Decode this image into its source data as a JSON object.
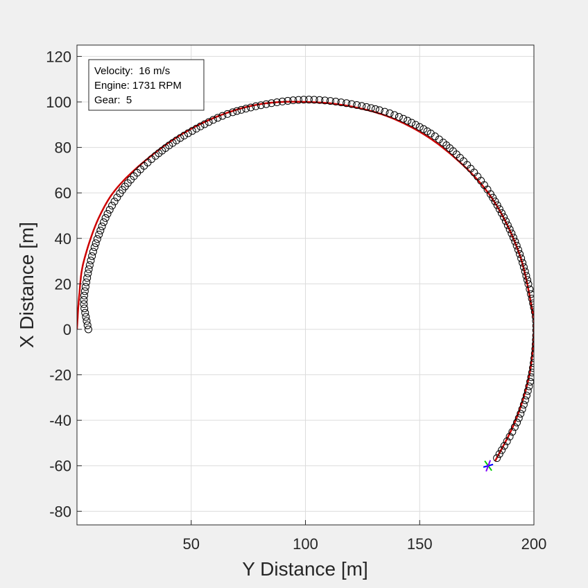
{
  "chart_data": {
    "type": "scatter",
    "xlabel": "Y Distance [m]",
    "ylabel": "X Distance [m]",
    "xlim": [
      0,
      200
    ],
    "ylim": [
      -86,
      125
    ],
    "xticks": [
      50,
      100,
      150,
      200
    ],
    "yticks": [
      -80,
      -60,
      -40,
      -20,
      0,
      20,
      40,
      60,
      80,
      100,
      120
    ],
    "grid": true,
    "legend_box": {
      "placement": "top-left",
      "lines": [
        "Velocity:  16 m/s",
        "Engine: 1731 RPM",
        "Gear:  5"
      ]
    },
    "series": [
      {
        "kind": "reference-path",
        "color": "#cc0000",
        "points": [
          [
            0,
            0
          ],
          [
            1,
            15
          ],
          [
            3,
            30
          ],
          [
            10,
            50
          ],
          [
            20,
            65
          ],
          [
            40,
            82
          ],
          [
            60,
            93
          ],
          [
            80,
            99
          ],
          [
            100,
            100
          ],
          [
            120,
            98
          ],
          [
            140,
            92
          ],
          [
            160,
            80
          ],
          [
            180,
            60
          ],
          [
            193,
            35
          ],
          [
            199,
            10
          ],
          [
            200,
            0
          ],
          [
            198,
            -20
          ],
          [
            192,
            -40
          ],
          [
            183,
            -58
          ]
        ]
      },
      {
        "kind": "vehicle-track",
        "marker": "circle",
        "color": "#000000",
        "points": [
          [
            5,
            0
          ],
          [
            4,
            5
          ],
          [
            3,
            12
          ],
          [
            4,
            20
          ],
          [
            6,
            30
          ],
          [
            9,
            40
          ],
          [
            14,
            52
          ],
          [
            22,
            64
          ],
          [
            34,
            76
          ],
          [
            50,
            87
          ],
          [
            70,
            96
          ],
          [
            100,
            101
          ],
          [
            130,
            97
          ],
          [
            150,
            89
          ],
          [
            165,
            78
          ],
          [
            180,
            61
          ],
          [
            192,
            38
          ],
          [
            199,
            14
          ],
          [
            201,
            0
          ],
          [
            199,
            -20
          ],
          [
            193,
            -40
          ],
          [
            183,
            -58
          ]
        ]
      }
    ],
    "vehicle_marker": {
      "position": [
        180,
        -60
      ],
      "colors": [
        "#00cc00",
        "#0000ff",
        "#8000ff"
      ]
    }
  }
}
